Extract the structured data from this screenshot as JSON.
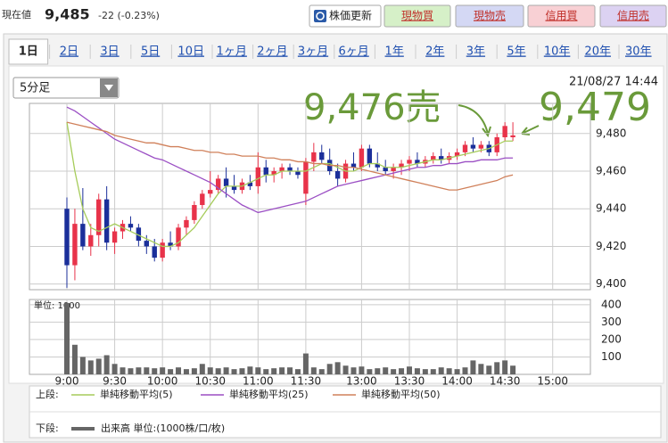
{
  "header": {
    "label": "現在値",
    "price": "9,485",
    "change": "-22 (-0.23%)",
    "buttons": [
      "株価更新",
      "現物買",
      "現物売",
      "信用買",
      "信用売"
    ]
  },
  "tabs": [
    "1日",
    "2日",
    "3日",
    "5日",
    "10日",
    "1ヶ月",
    "2ヶ月",
    "3ヶ月",
    "6ヶ月",
    "1年",
    "2年",
    "3年",
    "5年",
    "10年",
    "20年",
    "30年"
  ],
  "interval": "5分足",
  "timestamp": "21/08/27 14:44",
  "chart_data": [
    {
      "type": "candlestick",
      "legend_label": "上段:",
      "annotations": [
        "9,476売",
        "9,479"
      ],
      "categories": [
        "9:00",
        "9:05",
        "9:10",
        "9:15",
        "9:20",
        "9:25",
        "9:30",
        "9:35",
        "9:40",
        "9:45",
        "9:50",
        "9:55",
        "10:00",
        "10:05",
        "10:10",
        "10:15",
        "10:20",
        "10:25",
        "10:30",
        "10:35",
        "10:40",
        "10:45",
        "10:50",
        "10:55",
        "11:00",
        "11:05",
        "11:10",
        "11:15",
        "11:20",
        "11:25",
        "11:30",
        "12:30",
        "12:35",
        "12:40",
        "12:45",
        "12:50",
        "12:55",
        "13:00",
        "13:05",
        "13:10",
        "13:15",
        "13:20",
        "13:25",
        "13:30",
        "13:35",
        "13:40",
        "13:45",
        "13:50",
        "13:55",
        "14:00",
        "14:05",
        "14:10",
        "14:15",
        "14:20",
        "14:25",
        "14:30",
        "14:35"
      ],
      "open": [
        9440,
        9410,
        9432,
        9420,
        9426,
        9445,
        9422,
        9428,
        9432,
        9430,
        9423,
        9420,
        9414,
        9422,
        9420,
        9430,
        9434,
        9442,
        9448,
        9450,
        9456,
        9452,
        9450,
        9454,
        9452,
        9462,
        9458,
        9460,
        9462,
        9460,
        9448,
        9465,
        9470,
        9466,
        9460,
        9456,
        9464,
        9462,
        9472,
        9464,
        9462,
        9460,
        9462,
        9464,
        9466,
        9464,
        9466,
        9468,
        9466,
        9468,
        9470,
        9474,
        9472,
        9474,
        9470,
        9478,
        9478
      ],
      "high": [
        9446,
        9440,
        9451,
        9432,
        9448,
        9452,
        9430,
        9434,
        9436,
        9432,
        9426,
        9424,
        9424,
        9428,
        9432,
        9436,
        9444,
        9450,
        9460,
        9458,
        9462,
        9458,
        9456,
        9458,
        9470,
        9466,
        9462,
        9464,
        9464,
        9462,
        9467,
        9475,
        9474,
        9472,
        9464,
        9466,
        9470,
        9474,
        9474,
        9470,
        9466,
        9464,
        9466,
        9468,
        9470,
        9468,
        9470,
        9472,
        9470,
        9472,
        9476,
        9478,
        9476,
        9476,
        9480,
        9486,
        9486
      ],
      "low": [
        9398,
        9402,
        9418,
        9415,
        9420,
        9418,
        9416,
        9424,
        9428,
        9420,
        9416,
        9412,
        9412,
        9418,
        9418,
        9426,
        9432,
        9440,
        9446,
        9448,
        9446,
        9448,
        9448,
        9450,
        9448,
        9454,
        9454,
        9456,
        9458,
        9456,
        9442,
        9460,
        9464,
        9458,
        9452,
        9454,
        9460,
        9460,
        9462,
        9460,
        9458,
        9456,
        9458,
        9460,
        9462,
        9462,
        9464,
        9464,
        9464,
        9466,
        9468,
        9470,
        9470,
        9468,
        9468,
        9476,
        9476
      ],
      "close": [
        9410,
        9432,
        9420,
        9426,
        9445,
        9422,
        9428,
        9432,
        9430,
        9423,
        9420,
        9414,
        9422,
        9420,
        9430,
        9434,
        9442,
        9448,
        9450,
        9456,
        9452,
        9450,
        9454,
        9452,
        9462,
        9458,
        9460,
        9462,
        9460,
        9458,
        9465,
        9470,
        9466,
        9460,
        9456,
        9464,
        9462,
        9472,
        9464,
        9462,
        9460,
        9462,
        9464,
        9466,
        9464,
        9466,
        9468,
        9466,
        9468,
        9470,
        9474,
        9472,
        9474,
        9470,
        9478,
        9484,
        9479
      ],
      "up_color": "#e8334a",
      "down_color": "#1b2f9a",
      "series": [
        {
          "name": "単純移動平均(5)",
          "color": "#a6cc5a",
          "values": [
            9486,
            9460,
            9440,
            9430,
            9428,
            9430,
            9432,
            9430,
            9428,
            9426,
            9424,
            9422,
            9420,
            9420,
            9422,
            9426,
            9430,
            9436,
            9442,
            9448,
            9452,
            9452,
            9452,
            9454,
            9456,
            9458,
            9458,
            9460,
            9460,
            9460,
            9460,
            9462,
            9464,
            9464,
            9462,
            9460,
            9460,
            9462,
            9464,
            9464,
            9462,
            9462,
            9462,
            9463,
            9464,
            9465,
            9466,
            9466,
            9467,
            9468,
            9469,
            9470,
            9471,
            9472,
            9474,
            9476,
            9476
          ]
        },
        {
          "name": "単純移動平均(25)",
          "color": "#9b4fc4",
          "values": [
            9494,
            9492,
            9489,
            9486,
            9483,
            9480,
            9477,
            9475,
            9473,
            9471,
            9469,
            9467,
            9466,
            9464,
            9462,
            9460,
            9458,
            9456,
            9454,
            9451,
            9448,
            9445,
            9442,
            9440,
            9438,
            9439,
            9440,
            9441,
            9442,
            9443,
            9444,
            9446,
            9448,
            9450,
            9452,
            9453,
            9454,
            9455,
            9456,
            9457,
            9458,
            9459,
            9460,
            9461,
            9462,
            9462,
            9463,
            9463,
            9464,
            9464,
            9465,
            9465,
            9466,
            9466,
            9466,
            9467,
            9467
          ]
        },
        {
          "name": "単純移動平均(50)",
          "color": "#d0805a",
          "values": [
            9486,
            9485,
            9484,
            9483,
            9482,
            9481,
            9479,
            9478,
            9477,
            9476,
            9475,
            9475,
            9474,
            9473,
            9473,
            9472,
            9471,
            9471,
            9470,
            9470,
            9469,
            9469,
            9468,
            9468,
            9468,
            9467,
            9467,
            9466,
            9466,
            9465,
            9465,
            9464,
            9464,
            9463,
            9463,
            9462,
            9462,
            9461,
            9460,
            9459,
            9458,
            9457,
            9456,
            9455,
            9454,
            9453,
            9452,
            9451,
            9450,
            9450,
            9451,
            9452,
            9453,
            9454,
            9455,
            9457,
            9458
          ]
        }
      ],
      "ylim": [
        9397,
        9496
      ],
      "yticks": [
        {
          "value": 9400,
          "label": "9,400"
        },
        {
          "value": 9420,
          "label": "9,420"
        },
        {
          "value": 9440,
          "label": "9,440"
        },
        {
          "value": 9460,
          "label": "9,460"
        },
        {
          "value": 9480,
          "label": "9,480"
        }
      ],
      "xticks": [
        "9:00",
        "9:30",
        "10:00",
        "10:30",
        "11:00",
        "11:30",
        "13:00",
        "13:30",
        "14:00",
        "14:30",
        "15:00"
      ],
      "grid": true
    },
    {
      "type": "bar",
      "legend_label": "下段:",
      "unit_label": "単位: 1000",
      "series": [
        {
          "name": "出来高 単位:(1000株/口/枚)",
          "color": "#666666",
          "values": [
            410,
            170,
            100,
            80,
            90,
            110,
            60,
            40,
            35,
            40,
            40,
            35,
            40,
            30,
            40,
            30,
            35,
            60,
            40,
            35,
            40,
            30,
            35,
            45,
            40,
            30,
            35,
            40,
            40,
            30,
            120,
            40,
            30,
            60,
            70,
            50,
            40,
            45,
            30,
            35,
            40,
            30,
            35,
            45,
            35,
            30,
            30,
            40,
            35,
            30,
            40,
            80,
            60,
            50,
            70,
            80,
            50
          ]
        }
      ],
      "ylim": [
        0,
        430
      ],
      "yticks": [
        100,
        200,
        300,
        400
      ],
      "grid": true
    }
  ]
}
